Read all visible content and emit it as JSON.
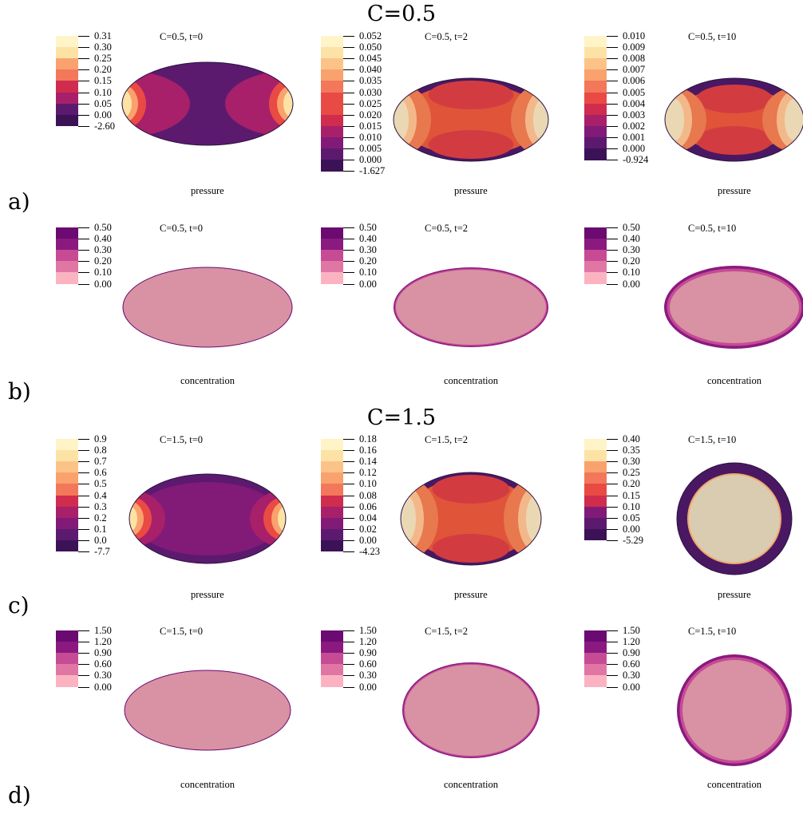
{
  "sections": [
    {
      "title": "C=0.5"
    },
    {
      "title": "C=1.5"
    }
  ],
  "rows": [
    {
      "label": "a)",
      "kind": "pressure",
      "caption": "pressure",
      "panels": [
        {
          "title": "C=0.5, t=0",
          "ticks": [
            "0.31",
            "0.30",
            "0.25",
            "0.20",
            "0.15",
            "0.10",
            "0.05",
            "0.00",
            "-2.60"
          ]
        },
        {
          "title": "C=0.5, t=2",
          "ticks": [
            "0.052",
            "0.050",
            "0.045",
            "0.040",
            "0.035",
            "0.030",
            "0.025",
            "0.020",
            "0.015",
            "0.010",
            "0.005",
            "0.000",
            "-1.627"
          ]
        },
        {
          "title": "C=0.5, t=10",
          "ticks": [
            "0.010",
            "0.009",
            "0.008",
            "0.007",
            "0.006",
            "0.005",
            "0.004",
            "0.003",
            "0.002",
            "0.001",
            "0.000",
            "-0.924"
          ]
        }
      ]
    },
    {
      "label": "b)",
      "kind": "concentration",
      "caption": "concentration",
      "panels": [
        {
          "title": "C=0.5, t=0",
          "ticks": [
            "0.50",
            "0.40",
            "0.30",
            "0.20",
            "0.10",
            "0.00"
          ]
        },
        {
          "title": "C=0.5, t=2",
          "ticks": [
            "0.50",
            "0.40",
            "0.30",
            "0.20",
            "0.10",
            "0.00"
          ]
        },
        {
          "title": "C=0.5, t=10",
          "ticks": [
            "0.50",
            "0.40",
            "0.30",
            "0.20",
            "0.10",
            "0.00"
          ]
        }
      ]
    },
    {
      "label": "c)",
      "kind": "pressure",
      "caption": "pressure",
      "panels": [
        {
          "title": "C=1.5, t=0",
          "ticks": [
            "0.9",
            "0.8",
            "0.7",
            "0.6",
            "0.5",
            "0.4",
            "0.3",
            "0.2",
            "0.1",
            "0.0",
            "-7.7"
          ]
        },
        {
          "title": "C=1.5, t=2",
          "ticks": [
            "0.18",
            "0.16",
            "0.14",
            "0.12",
            "0.10",
            "0.08",
            "0.06",
            "0.04",
            "0.02",
            "0.00",
            "-4.23"
          ]
        },
        {
          "title": "C=1.5, t=10",
          "ticks": [
            "0.40",
            "0.35",
            "0.30",
            "0.25",
            "0.20",
            "0.15",
            "0.10",
            "0.05",
            "0.00",
            "-5.29"
          ]
        }
      ]
    },
    {
      "label": "d)",
      "kind": "concentration",
      "caption": "concentration",
      "panels": [
        {
          "title": "C=1.5, t=0",
          "ticks": [
            "1.50",
            "1.20",
            "0.90",
            "0.60",
            "0.30",
            "0.00"
          ]
        },
        {
          "title": "C=1.5, t=2",
          "ticks": [
            "1.50",
            "1.20",
            "0.90",
            "0.60",
            "0.30",
            "0.00"
          ]
        },
        {
          "title": "C=1.5, t=10",
          "ticks": [
            "1.50",
            "1.20",
            "0.90",
            "0.60",
            "0.30",
            "0.00"
          ]
        }
      ]
    }
  ],
  "colors": {
    "pressure_palette": [
      "#fff3c8",
      "#fde2a6",
      "#fcc389",
      "#f9a26d",
      "#f3775a",
      "#e94a44",
      "#cf2c4e",
      "#a8206a",
      "#821a78",
      "#5c1a6f",
      "#3b1256"
    ],
    "concentration_palette": [
      "#fbb3c2",
      "#e076a3",
      "#c64b94",
      "#a92f8c",
      "#8a1a80",
      "#6b0a70"
    ],
    "interior_concentration": "#d892a4",
    "outline": "#2a1240"
  }
}
